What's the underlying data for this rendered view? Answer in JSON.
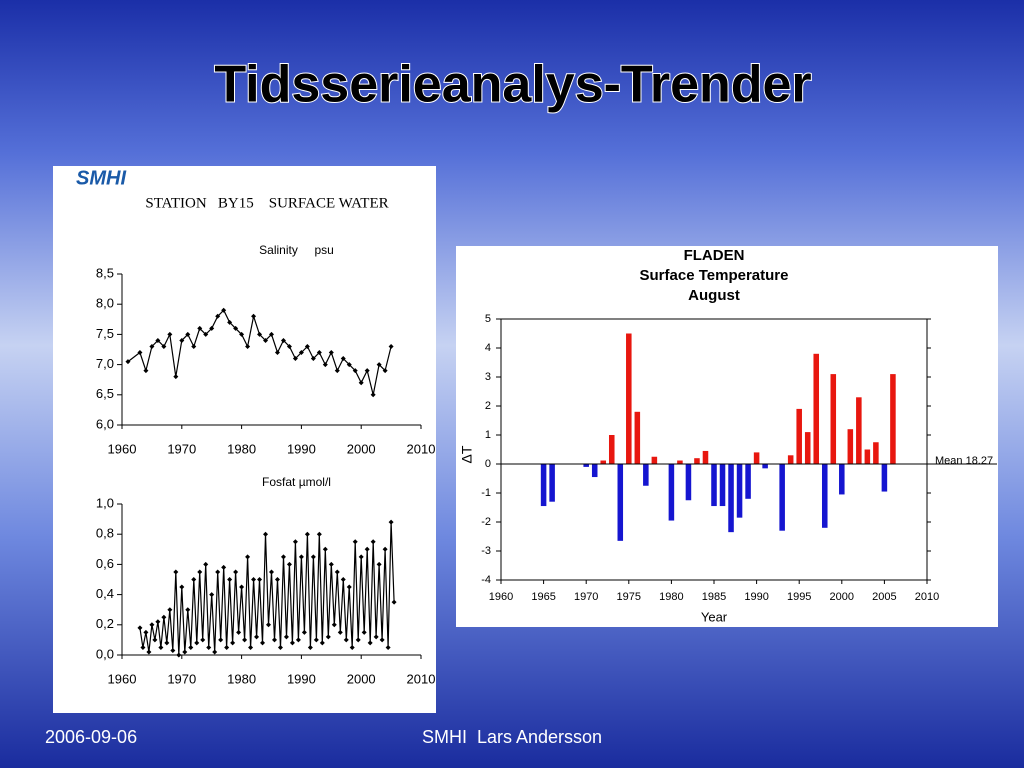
{
  "title": "Tidsserieanalys-Trender",
  "logo": "SMHI",
  "panel_title": "STATION   BY15    SURFACE WATER",
  "footer": {
    "date": "2006-09-06",
    "author": "SMHI  Lars Andersson"
  },
  "chart_data": [
    {
      "type": "line",
      "title": "Salinity     psu",
      "color": "#000000",
      "x": [
        1961,
        1963,
        1964,
        1965,
        1966,
        1967,
        1968,
        1969,
        1970,
        1971,
        1972,
        1973,
        1974,
        1975,
        1976,
        1977,
        1978,
        1979,
        1980,
        1981,
        1982,
        1983,
        1984,
        1985,
        1986,
        1987,
        1988,
        1989,
        1990,
        1991,
        1992,
        1993,
        1994,
        1995,
        1996,
        1997,
        1998,
        1999,
        2000,
        2001,
        2002,
        2003,
        2004,
        2005
      ],
      "values": [
        7.05,
        7.2,
        6.9,
        7.3,
        7.4,
        7.3,
        7.5,
        6.8,
        7.4,
        7.5,
        7.3,
        7.6,
        7.5,
        7.6,
        7.8,
        7.9,
        7.7,
        7.6,
        7.5,
        7.3,
        7.8,
        7.5,
        7.4,
        7.5,
        7.2,
        7.4,
        7.3,
        7.1,
        7.2,
        7.3,
        7.1,
        7.2,
        7.0,
        7.2,
        6.9,
        7.1,
        7.0,
        6.9,
        6.7,
        6.9,
        6.5,
        7.0,
        6.9,
        7.3
      ],
      "xlim": [
        1960,
        2010
      ],
      "xticks": [
        1960,
        1970,
        1980,
        1990,
        2000,
        2010
      ],
      "ylim": [
        6,
        8.5
      ],
      "yticks": [
        {
          "value": 6,
          "label": "6,0"
        },
        {
          "value": 6.5,
          "label": "6,5"
        },
        {
          "value": 7,
          "label": "7,0"
        },
        {
          "value": 7.5,
          "label": "7,5"
        },
        {
          "value": 8,
          "label": "8,0"
        },
        {
          "value": 8.5,
          "label": "8,5"
        }
      ]
    },
    {
      "type": "line",
      "title": "Fosfat µmol/l",
      "color": "#000000",
      "x": [
        1963,
        1963.5,
        1964,
        1964.5,
        1965,
        1965.5,
        1966,
        1966.5,
        1967,
        1967.5,
        1968,
        1968.5,
        1969,
        1969.5,
        1970,
        1970.5,
        1971,
        1971.5,
        1972,
        1972.5,
        1973,
        1973.5,
        1974,
        1974.5,
        1975,
        1975.5,
        1976,
        1976.5,
        1977,
        1977.5,
        1978,
        1978.5,
        1979,
        1979.5,
        1980,
        1980.5,
        1981,
        1981.5,
        1982,
        1982.5,
        1983,
        1983.5,
        1984,
        1984.5,
        1985,
        1985.5,
        1986,
        1986.5,
        1987,
        1987.5,
        1988,
        1988.5,
        1989,
        1989.5,
        1990,
        1990.5,
        1991,
        1991.5,
        1992,
        1992.5,
        1993,
        1993.5,
        1994,
        1994.5,
        1995,
        1995.5,
        1996,
        1996.5,
        1997,
        1997.5,
        1998,
        1998.5,
        1999,
        1999.5,
        2000,
        2000.5,
        2001,
        2001.5,
        2002,
        2002.5,
        2003,
        2003.5,
        2004,
        2004.5,
        2005,
        2005.5
      ],
      "values": [
        0.18,
        0.05,
        0.15,
        0.02,
        0.2,
        0.1,
        0.22,
        0.05,
        0.25,
        0.08,
        0.3,
        0.03,
        0.55,
        0.0,
        0.45,
        0.02,
        0.3,
        0.05,
        0.5,
        0.08,
        0.55,
        0.1,
        0.6,
        0.05,
        0.4,
        0.02,
        0.55,
        0.1,
        0.58,
        0.05,
        0.5,
        0.08,
        0.55,
        0.15,
        0.45,
        0.1,
        0.65,
        0.05,
        0.5,
        0.12,
        0.5,
        0.08,
        0.8,
        0.2,
        0.55,
        0.1,
        0.5,
        0.05,
        0.65,
        0.12,
        0.6,
        0.08,
        0.75,
        0.1,
        0.65,
        0.15,
        0.8,
        0.05,
        0.65,
        0.1,
        0.8,
        0.08,
        0.7,
        0.12,
        0.6,
        0.2,
        0.55,
        0.15,
        0.5,
        0.1,
        0.45,
        0.05,
        0.75,
        0.1,
        0.65,
        0.15,
        0.7,
        0.08,
        0.75,
        0.12,
        0.6,
        0.1,
        0.7,
        0.05,
        0.88,
        0.35
      ],
      "xlim": [
        1960,
        2010
      ],
      "xticks": [
        1960,
        1970,
        1980,
        1990,
        2000,
        2010
      ],
      "ylim": [
        0,
        1
      ],
      "yticks": [
        {
          "value": 0,
          "label": "0,0"
        },
        {
          "value": 0.2,
          "label": "0,2"
        },
        {
          "value": 0.4,
          "label": "0,4"
        },
        {
          "value": 0.6,
          "label": "0,6"
        },
        {
          "value": 0.8,
          "label": "0,8"
        },
        {
          "value": 1,
          "label": "1,0"
        }
      ]
    },
    {
      "type": "bar",
      "title": [
        "FLADEN",
        "Surface Temperature",
        "August"
      ],
      "x_label": "Year",
      "y_label": "ΔT",
      "annotation": "Mean 18.27",
      "positive_color": "#e8170f",
      "negative_color": "#1515d0",
      "x": [
        1965,
        1966,
        1970,
        1971,
        1972,
        1973,
        1974,
        1975,
        1976,
        1977,
        1978,
        1980,
        1981,
        1982,
        1983,
        1984,
        1985,
        1986,
        1987,
        1988,
        1989,
        1990,
        1991,
        1993,
        1994,
        1995,
        1996,
        1997,
        1998,
        1999,
        2000,
        2001,
        2002,
        2003,
        2004,
        2005,
        2006
      ],
      "values": [
        -1.45,
        -1.3,
        -0.1,
        -0.45,
        0.12,
        1.0,
        -2.65,
        4.5,
        1.8,
        -0.75,
        0.25,
        -1.95,
        0.12,
        -1.25,
        0.2,
        0.45,
        -1.45,
        -1.45,
        -2.35,
        -1.85,
        -1.2,
        0.4,
        -0.15,
        -2.3,
        0.3,
        1.9,
        1.1,
        3.8,
        -2.2,
        3.1,
        -1.05,
        1.2,
        2.3,
        0.5,
        0.75,
        -0.95,
        3.1
      ],
      "xlim": [
        1960,
        2010
      ],
      "xticks": [
        1960,
        1965,
        1970,
        1975,
        1980,
        1985,
        1990,
        1995,
        2000,
        2005,
        2010
      ],
      "ylim": [
        -4,
        5
      ],
      "yticks": [
        -4,
        -3,
        -2,
        -1,
        0,
        1,
        2,
        3,
        4,
        5
      ]
    }
  ]
}
